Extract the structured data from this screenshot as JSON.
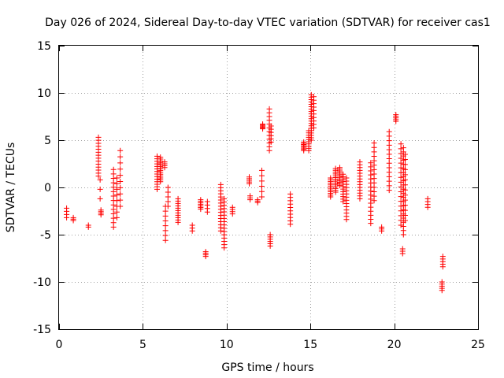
{
  "chart_data": {
    "type": "scatter",
    "title": "Day 026 of 2024, Sidereal Day-to-day VTEC variation (SDTVAR) for receiver cas1",
    "xlabel": "GPS time / hours",
    "ylabel": "SDTVAR / TECUs",
    "xlim": [
      0,
      25
    ],
    "ylim": [
      -15,
      15
    ],
    "x_ticks": [
      0,
      5,
      10,
      15,
      20,
      25
    ],
    "y_ticks": [
      -15,
      -10,
      -5,
      0,
      5,
      10,
      15
    ],
    "grid": true,
    "marker": "+",
    "marker_color": "#ff0000",
    "clusters": [
      {
        "x": 0.45,
        "y_from": -3.2,
        "y_to": -2.2,
        "n": 4
      },
      {
        "x": 0.85,
        "y_from": -3.5,
        "y_to": -3.2,
        "n": 3
      },
      {
        "x": 1.75,
        "y_from": -4.2,
        "y_to": -4.0,
        "n": 2
      },
      {
        "x": 2.35,
        "y_from": 1.2,
        "y_to": 5.3,
        "n": 14
      },
      {
        "x": 2.5,
        "y_from": -2.9,
        "y_to": -2.4,
        "n": 4
      },
      {
        "x": 2.45,
        "y_from": -1.2,
        "y_to": 0.8,
        "n": 3
      },
      {
        "x": 3.25,
        "y_from": -4.2,
        "y_to": 1.9,
        "n": 14
      },
      {
        "x": 3.45,
        "y_from": -3.2,
        "y_to": 1.0,
        "n": 8
      },
      {
        "x": 3.65,
        "y_from": -2.0,
        "y_to": 3.9,
        "n": 10
      },
      {
        "x": 5.85,
        "y_from": -0.2,
        "y_to": 3.3,
        "n": 14
      },
      {
        "x": 6.05,
        "y_from": 0.6,
        "y_to": 3.2,
        "n": 14
      },
      {
        "x": 6.3,
        "y_from": 2.1,
        "y_to": 2.7,
        "n": 4
      },
      {
        "x": 6.35,
        "y_from": -5.6,
        "y_to": -2.0,
        "n": 8
      },
      {
        "x": 6.5,
        "y_from": -2.0,
        "y_to": 0.0,
        "n": 5
      },
      {
        "x": 7.1,
        "y_from": -3.7,
        "y_to": -1.2,
        "n": 11
      },
      {
        "x": 7.95,
        "y_from": -4.6,
        "y_to": -4.0,
        "n": 3
      },
      {
        "x": 8.45,
        "y_from": -2.3,
        "y_to": -1.3,
        "n": 7
      },
      {
        "x": 8.75,
        "y_from": -7.3,
        "y_to": -6.8,
        "n": 4
      },
      {
        "x": 8.85,
        "y_from": -2.6,
        "y_to": -1.5,
        "n": 4
      },
      {
        "x": 9.65,
        "y_from": -4.6,
        "y_to": 0.3,
        "n": 16
      },
      {
        "x": 9.85,
        "y_from": -6.4,
        "y_to": -1.2,
        "n": 16
      },
      {
        "x": 10.35,
        "y_from": -2.8,
        "y_to": -2.1,
        "n": 4
      },
      {
        "x": 11.35,
        "y_from": 0.4,
        "y_to": 1.1,
        "n": 5
      },
      {
        "x": 11.4,
        "y_from": -1.3,
        "y_to": -0.9,
        "n": 3
      },
      {
        "x": 11.85,
        "y_from": -1.6,
        "y_to": -1.3,
        "n": 3
      },
      {
        "x": 12.1,
        "y_from": -1.0,
        "y_to": 1.8,
        "n": 6
      },
      {
        "x": 12.15,
        "y_from": 6.2,
        "y_to": 6.7,
        "n": 6
      },
      {
        "x": 12.55,
        "y_from": 3.9,
        "y_to": 8.3,
        "n": 12
      },
      {
        "x": 12.65,
        "y_from": 4.8,
        "y_to": 6.5,
        "n": 6
      },
      {
        "x": 12.6,
        "y_from": -6.2,
        "y_to": -5.0,
        "n": 6
      },
      {
        "x": 13.8,
        "y_from": -3.9,
        "y_to": -0.7,
        "n": 10
      },
      {
        "x": 14.6,
        "y_from": 3.9,
        "y_to": 4.8,
        "n": 8
      },
      {
        "x": 14.9,
        "y_from": 3.9,
        "y_to": 6.0,
        "n": 10
      },
      {
        "x": 15.05,
        "y_from": 5.0,
        "y_to": 9.8,
        "n": 20
      },
      {
        "x": 15.2,
        "y_from": 6.3,
        "y_to": 9.6,
        "n": 10
      },
      {
        "x": 16.2,
        "y_from": -1.0,
        "y_to": 1.0,
        "n": 12
      },
      {
        "x": 16.5,
        "y_from": -0.5,
        "y_to": 2.0,
        "n": 14
      },
      {
        "x": 16.75,
        "y_from": 0.2,
        "y_to": 2.1,
        "n": 12
      },
      {
        "x": 16.95,
        "y_from": -1.5,
        "y_to": 1.4,
        "n": 12
      },
      {
        "x": 17.15,
        "y_from": -3.4,
        "y_to": 1.0,
        "n": 14
      },
      {
        "x": 17.95,
        "y_from": -1.2,
        "y_to": 2.7,
        "n": 14
      },
      {
        "x": 18.6,
        "y_from": -3.8,
        "y_to": 2.6,
        "n": 16
      },
      {
        "x": 18.8,
        "y_from": -1.4,
        "y_to": 4.7,
        "n": 14
      },
      {
        "x": 19.25,
        "y_from": -4.6,
        "y_to": -4.2,
        "n": 3
      },
      {
        "x": 19.7,
        "y_from": -0.3,
        "y_to": 5.9,
        "n": 14
      },
      {
        "x": 20.1,
        "y_from": 7.0,
        "y_to": 7.7,
        "n": 5
      },
      {
        "x": 20.4,
        "y_from": -4.0,
        "y_to": 4.6,
        "n": 18
      },
      {
        "x": 20.55,
        "y_from": -5.0,
        "y_to": 4.2,
        "n": 22
      },
      {
        "x": 20.65,
        "y_from": -3.5,
        "y_to": 3.5,
        "n": 14
      },
      {
        "x": 20.5,
        "y_from": -7.0,
        "y_to": -6.5,
        "n": 3
      },
      {
        "x": 22.0,
        "y_from": -2.1,
        "y_to": -1.2,
        "n": 4
      },
      {
        "x": 22.85,
        "y_from": -10.9,
        "y_to": -10.0,
        "n": 5
      },
      {
        "x": 22.9,
        "y_from": -8.4,
        "y_to": -7.3,
        "n": 5
      }
    ]
  }
}
